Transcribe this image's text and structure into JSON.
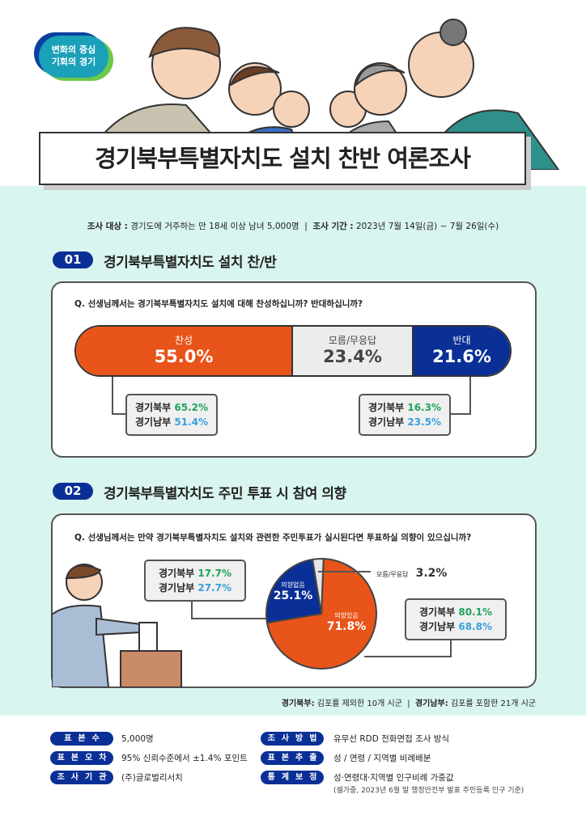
{
  "logo": {
    "line1": "변화의 중심",
    "line2": "기회의 경기"
  },
  "title": "경기북부특별자치도 설치 찬반 여론조사",
  "info": {
    "target_label": "조사 대상 :",
    "target": "경기도에 거주하는 만 18세 이상 남녀 5,000명",
    "period_label": "조사 기간 :",
    "period": "2023년 7월 14일(금) ~ 7월 26일(수)"
  },
  "section1": {
    "num": "01",
    "title": "경기북부특별자치도 설치 찬/반",
    "question": "Q. 선생님께서는 경기북부특별자치도 설치에 대해 찬성하십니까? 반대하십니까?",
    "left_box": {
      "north_label": "경기북부",
      "north": "65.2%",
      "south_label": "경기남부",
      "south": "51.4%"
    },
    "right_box": {
      "north_label": "경기북부",
      "north": "16.3%",
      "south_label": "경기남부",
      "south": "23.5%"
    }
  },
  "section2": {
    "num": "02",
    "title": "경기북부특별자치도 주민 투표 시 참여 의향",
    "question": "Q. 선생님께서는 만약 경기북부특별자치도 설치와 관련한 주민투표가 실시된다면 투표하실 의향이 있으십니까?",
    "left_box": {
      "north_label": "경기북부",
      "north": "17.7%",
      "south_label": "경기남부",
      "south": "27.7%"
    },
    "right_box": {
      "north_label": "경기북부",
      "north": "80.1%",
      "south_label": "경기남부",
      "south": "68.8%"
    },
    "note_n_label": "경기북부:",
    "note_n": "김포를 제외한 10개 시군",
    "note_s_label": "경기남부:",
    "note_s": "김포를 포함한 21개 시군"
  },
  "chart_data": [
    {
      "type": "bar",
      "title": "경기북부특별자치도 설치 찬/반",
      "categories": [
        "찬성",
        "모름/무응답",
        "반대"
      ],
      "values": [
        55.0,
        23.4,
        21.6
      ],
      "labels": [
        "55.0%",
        "23.4%",
        "21.6%"
      ],
      "colors": [
        "#e8541a",
        "#ececec",
        "#0a2f96"
      ]
    },
    {
      "type": "pie",
      "title": "주민 투표 시 참여 의향",
      "categories": [
        "의향있음",
        "의향없음",
        "모름/무응답"
      ],
      "values": [
        71.8,
        25.1,
        3.2
      ],
      "labels": [
        "71.8%",
        "25.1%",
        "3.2%"
      ],
      "colors": [
        "#e8541a",
        "#0a2f96",
        "#e6e6e6"
      ]
    }
  ],
  "footer": [
    {
      "label": "표본수",
      "value": "5,000명"
    },
    {
      "label": "표본오차",
      "value": "95% 신뢰수준에서 ±1.4% 포인트"
    },
    {
      "label": "조사기관",
      "value": "(주)글로벌리서치"
    },
    {
      "label": "조사방법",
      "value": "유무선 RDD 전화면접 조사 방식"
    },
    {
      "label": "표본추출",
      "value": "성 / 연령 / 지역별 비례배분"
    },
    {
      "label": "통계보정",
      "value": "성·연령대·지역별 인구비례 가중값",
      "note": "(셀가중, 2023년 6월 말 행정안전부 발표 주민등록 인구 기준)"
    }
  ]
}
